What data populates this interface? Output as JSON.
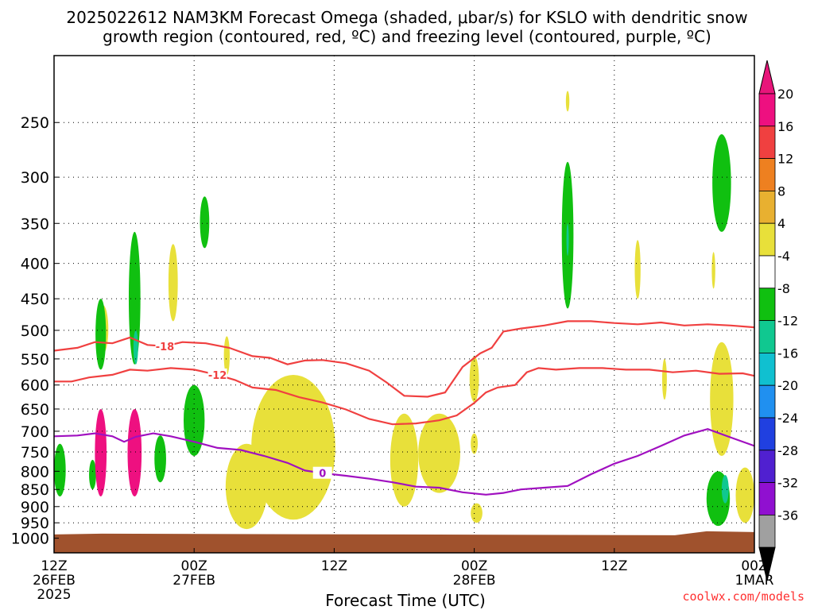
{
  "header": {
    "title_line1": "2025022612 NAM3KM Forecast Omega (shaded, μbar/s) for KSLO with dendritic snow",
    "title_line2": "growth region (contoured, red, ºC) and freezing level (contoured, purple, ºC)"
  },
  "footer": {
    "credit": "coolwx.com/models"
  },
  "chart_data": {
    "type": "heatmap",
    "title": "2025022612 NAM3KM Forecast Omega (shaded, μbar/s) for KSLO with dendritic snow growth region (contoured, red, ºC) and freezing level (contoured, purple, ºC)",
    "xlabel": "Forecast Time (UTC)",
    "ylabel": "",
    "x_range_hours": [
      0,
      60
    ],
    "y_axis": {
      "scale": "log",
      "ylim": [
        1050,
        200
      ],
      "ticks": [
        250,
        300,
        350,
        400,
        450,
        500,
        550,
        600,
        650,
        700,
        750,
        800,
        850,
        900,
        950,
        1000
      ]
    },
    "x_ticks": [
      {
        "hour": 0,
        "lines": [
          "12Z",
          "26FEB",
          "2025"
        ]
      },
      {
        "hour": 12,
        "lines": [
          "00Z",
          "27FEB"
        ]
      },
      {
        "hour": 24,
        "lines": [
          "12Z"
        ]
      },
      {
        "hour": 36,
        "lines": [
          "00Z",
          "28FEB"
        ]
      },
      {
        "hour": 48,
        "lines": [
          "12Z"
        ]
      },
      {
        "hour": 60,
        "lines": [
          "00Z",
          "1MAR"
        ]
      }
    ],
    "grid": true,
    "colorbar": {
      "labels": [
        "20",
        "16",
        "12",
        "8",
        "4",
        "-4",
        "-8",
        "-12",
        "-16",
        "-20",
        "-24",
        "-28",
        "-32",
        "-36"
      ],
      "colors": [
        "#ee1080",
        "#f04040",
        "#ee8020",
        "#e8b030",
        "#e8e03a",
        "#ffffff",
        "#10c010",
        "#10c890",
        "#10c0d0",
        "#2090f0",
        "#2040e0",
        "#5020d0",
        "#9010d0",
        "#a0a0a0"
      ],
      "top_color": "#e8157a",
      "bottom_color": "#000000"
    },
    "ground_color": "#a0522d",
    "series": [
      {
        "name": "-18",
        "color": "#f04040",
        "points": [
          [
            0,
            535
          ],
          [
            2,
            530
          ],
          [
            3.5,
            520
          ],
          [
            5,
            522
          ],
          [
            6.5,
            512
          ],
          [
            8,
            525
          ],
          [
            9.5,
            527
          ],
          [
            11,
            520
          ],
          [
            13,
            522
          ],
          [
            15,
            530
          ],
          [
            17,
            545
          ],
          [
            18.5,
            548
          ],
          [
            20,
            560
          ],
          [
            21.5,
            553
          ],
          [
            23,
            552
          ],
          [
            25,
            558
          ],
          [
            27,
            572
          ],
          [
            28.5,
            595
          ],
          [
            30,
            622
          ],
          [
            32,
            624
          ],
          [
            33.5,
            615
          ],
          [
            35,
            565
          ],
          [
            36.5,
            540
          ],
          [
            37.5,
            530
          ],
          [
            38.5,
            502
          ],
          [
            40,
            497
          ],
          [
            42,
            492
          ],
          [
            44,
            485
          ],
          [
            46,
            485
          ],
          [
            48,
            488
          ],
          [
            50,
            490
          ],
          [
            52,
            487
          ],
          [
            54,
            492
          ],
          [
            56,
            490
          ],
          [
            58,
            492
          ],
          [
            60,
            495
          ]
        ]
      },
      {
        "name": "-12",
        "color": "#f04040",
        "points": [
          [
            0,
            593
          ],
          [
            1.5,
            593
          ],
          [
            3,
            585
          ],
          [
            5,
            580
          ],
          [
            6.5,
            570
          ],
          [
            8,
            572
          ],
          [
            10,
            567
          ],
          [
            12,
            570
          ],
          [
            14,
            580
          ],
          [
            15.5,
            590
          ],
          [
            17,
            605
          ],
          [
            19,
            610
          ],
          [
            21,
            625
          ],
          [
            23,
            636
          ],
          [
            25,
            651
          ],
          [
            27,
            672
          ],
          [
            29,
            684
          ],
          [
            31,
            682
          ],
          [
            33,
            675
          ],
          [
            34.5,
            664
          ],
          [
            36,
            637
          ],
          [
            37,
            615
          ],
          [
            38,
            605
          ],
          [
            39.5,
            600
          ],
          [
            40.5,
            575
          ],
          [
            41.5,
            567
          ],
          [
            43,
            570
          ],
          [
            45,
            567
          ],
          [
            47,
            567
          ],
          [
            49,
            570
          ],
          [
            51,
            570
          ],
          [
            53,
            575
          ],
          [
            55,
            572
          ],
          [
            57,
            578
          ],
          [
            59,
            577
          ],
          [
            60,
            582
          ]
        ]
      },
      {
        "name": "0",
        "color": "#a010c0",
        "points": [
          [
            0,
            712
          ],
          [
            2,
            710
          ],
          [
            3.5,
            705
          ],
          [
            5,
            712
          ],
          [
            6,
            725
          ],
          [
            7,
            713
          ],
          [
            8.5,
            705
          ],
          [
            10,
            712
          ],
          [
            12,
            725
          ],
          [
            14,
            740
          ],
          [
            16,
            745
          ],
          [
            18,
            760
          ],
          [
            20,
            778
          ],
          [
            21.5,
            798
          ],
          [
            23,
            805
          ],
          [
            25,
            812
          ],
          [
            27,
            820
          ],
          [
            29,
            830
          ],
          [
            31,
            842
          ],
          [
            33,
            845
          ],
          [
            35,
            858
          ],
          [
            37,
            865
          ],
          [
            38.5,
            860
          ],
          [
            40,
            850
          ],
          [
            42,
            845
          ],
          [
            44,
            840
          ],
          [
            46,
            808
          ],
          [
            48,
            780
          ],
          [
            50,
            760
          ],
          [
            52,
            735
          ],
          [
            54,
            710
          ],
          [
            56,
            695
          ],
          [
            58,
            715
          ],
          [
            60,
            735
          ]
        ]
      }
    ],
    "omega_regions": [
      {
        "value": 4,
        "color": "#e8e03a",
        "hour": 4.2,
        "p": 500,
        "half_hours": 0.45,
        "half_p": 40
      },
      {
        "value": 4,
        "color": "#e8e03a",
        "hour": 10.2,
        "p": 430,
        "half_hours": 0.4,
        "half_p": 55
      },
      {
        "value": 4,
        "color": "#e8e03a",
        "hour": 14.8,
        "p": 545,
        "half_hours": 0.25,
        "half_p": 35
      },
      {
        "value": 4,
        "color": "#e8e03a",
        "hour": 20.5,
        "p": 760,
        "half_hours": 3.6,
        "half_p": 180
      },
      {
        "value": 4,
        "color": "#e8e03a",
        "hour": 16.5,
        "p": 850,
        "half_hours": 1.8,
        "half_p": 120
      },
      {
        "value": 4,
        "color": "#e8e03a",
        "hour": 30.0,
        "p": 780,
        "half_hours": 1.2,
        "half_p": 120
      },
      {
        "value": 4,
        "color": "#e8e03a",
        "hour": 33.0,
        "p": 760,
        "half_hours": 1.8,
        "half_p": 100
      },
      {
        "value": 4,
        "color": "#e8e03a",
        "hour": 36.0,
        "p": 590,
        "half_hours": 0.4,
        "half_p": 45
      },
      {
        "value": 4,
        "color": "#e8e03a",
        "hour": 36.0,
        "p": 730,
        "half_hours": 0.3,
        "half_p": 25
      },
      {
        "value": 4,
        "color": "#e8e03a",
        "hour": 36.2,
        "p": 920,
        "half_hours": 0.5,
        "half_p": 30
      },
      {
        "value": 4,
        "color": "#e8e03a",
        "hour": 44.0,
        "p": 233,
        "half_hours": 0.15,
        "half_p": 8
      },
      {
        "value": 4,
        "color": "#e8e03a",
        "hour": 50.0,
        "p": 410,
        "half_hours": 0.25,
        "half_p": 40
      },
      {
        "value": 4,
        "color": "#e8e03a",
        "hour": 52.3,
        "p": 590,
        "half_hours": 0.2,
        "half_p": 40
      },
      {
        "value": 4,
        "color": "#e8e03a",
        "hour": 57.2,
        "p": 640,
        "half_hours": 1.0,
        "half_p": 120
      },
      {
        "value": 4,
        "color": "#e8e03a",
        "hour": 56.5,
        "p": 410,
        "half_hours": 0.15,
        "half_p": 25
      },
      {
        "value": 4,
        "color": "#e8e03a",
        "hour": 59.2,
        "p": 870,
        "half_hours": 0.8,
        "half_p": 80
      },
      {
        "value": -8,
        "color": "#10c010",
        "hour": 4.0,
        "p": 510,
        "half_hours": 0.45,
        "half_p": 60
      },
      {
        "value": -8,
        "color": "#10c010",
        "hour": 6.9,
        "p": 460,
        "half_hours": 0.5,
        "half_p": 100
      },
      {
        "value": -8,
        "color": "#10c010",
        "hour": 12.9,
        "p": 350,
        "half_hours": 0.4,
        "half_p": 30
      },
      {
        "value": -8,
        "color": "#10c010",
        "hour": 12.0,
        "p": 680,
        "half_hours": 0.9,
        "half_p": 80
      },
      {
        "value": -8,
        "color": "#10c010",
        "hour": 9.1,
        "p": 770,
        "half_hours": 0.5,
        "half_p": 60
      },
      {
        "value": -8,
        "color": "#10c010",
        "hour": 0.5,
        "p": 800,
        "half_hours": 0.5,
        "half_p": 70
      },
      {
        "value": -8,
        "color": "#10c010",
        "hour": 3.3,
        "p": 810,
        "half_hours": 0.3,
        "half_p": 40
      },
      {
        "value": -8,
        "color": "#10c010",
        "hour": 44.0,
        "p": 375,
        "half_hours": 0.5,
        "half_p": 90
      },
      {
        "value": -8,
        "color": "#10c010",
        "hour": 57.2,
        "p": 310,
        "half_hours": 0.8,
        "half_p": 50
      },
      {
        "value": -8,
        "color": "#10c010",
        "hour": 56.9,
        "p": 880,
        "half_hours": 1.0,
        "half_p": 80
      },
      {
        "value": 20,
        "color": "#ee1080",
        "hour": 4.0,
        "p": 760,
        "half_hours": 0.5,
        "half_p": 110
      },
      {
        "value": 20,
        "color": "#ee1080",
        "hour": 6.9,
        "p": 760,
        "half_hours": 0.6,
        "half_p": 110
      },
      {
        "value": -12,
        "color": "#10c890",
        "hour": 7.0,
        "p": 530,
        "half_hours": 0.2,
        "half_p": 30
      },
      {
        "value": -12,
        "color": "#10c890",
        "hour": 44.0,
        "p": 370,
        "half_hours": 0.1,
        "half_p": 20
      },
      {
        "value": -12,
        "color": "#10c890",
        "hour": 57.5,
        "p": 850,
        "half_hours": 0.3,
        "half_p": 40
      }
    ]
  }
}
